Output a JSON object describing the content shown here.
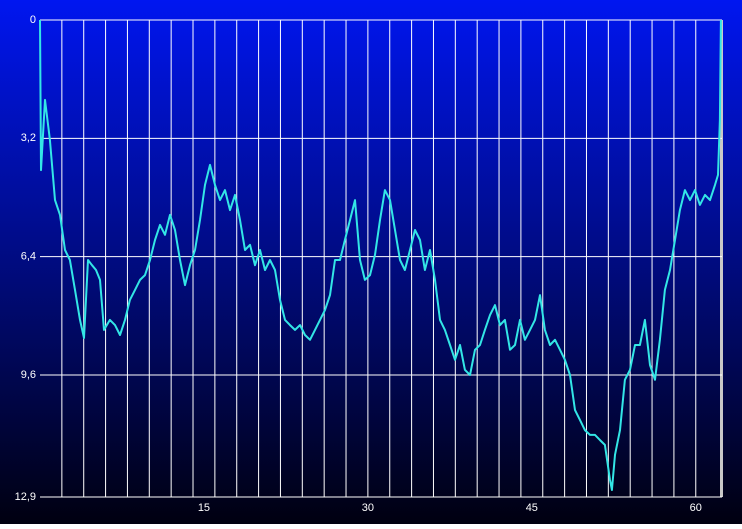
{
  "chart_data": {
    "type": "line",
    "color": "#33e6e6",
    "x": [
      0,
      0.09,
      0.46,
      0.91,
      1.37,
      1.83,
      2.29,
      2.74,
      3.2,
      3.66,
      4.03,
      4.39,
      4.76,
      5.12,
      5.49,
      5.86,
      6.4,
      6.86,
      7.32,
      7.78,
      8.23,
      8.69,
      9.15,
      9.61,
      10.06,
      10.52,
      10.98,
      11.44,
      11.89,
      12.35,
      12.81,
      13.27,
      13.72,
      14.18,
      14.64,
      15.1,
      15.55,
      16.01,
      16.47,
      16.93,
      17.38,
      17.84,
      18.3,
      18.76,
      19.21,
      19.67,
      20.13,
      20.59,
      21.04,
      21.5,
      21.96,
      22.42,
      22.87,
      23.33,
      23.79,
      24.25,
      24.7,
      25.16,
      25.62,
      26.08,
      26.53,
      26.99,
      27.45,
      27.9,
      28.36,
      28.82,
      29.28,
      29.73,
      30.19,
      30.65,
      31.11,
      31.56,
      32.02,
      32.48,
      32.94,
      33.39,
      33.85,
      34.31,
      34.77,
      35.22,
      35.68,
      36.14,
      36.6,
      37.05,
      37.51,
      37.97,
      38.43,
      38.88,
      39.34,
      39.8,
      40.26,
      40.71,
      41.17,
      41.63,
      42.09,
      42.54,
      43,
      43.46,
      43.92,
      44.37,
      44.83,
      45.29,
      45.75,
      46.2,
      46.66,
      47.12,
      47.58,
      48.03,
      48.49,
      48.95,
      49.41,
      49.86,
      50.32,
      50.78,
      51.24,
      51.69,
      52.15,
      52.33,
      52.61,
      53.07,
      53.52,
      53.98,
      54.44,
      54.89,
      55.35,
      55.81,
      56.27,
      56.72,
      57.18,
      57.64,
      58.1,
      58.55,
      59.01,
      59.47,
      59.93,
      60.38,
      60.84,
      61.3,
      61.76,
      62.03,
      62.21,
      62.3
    ],
    "values": [
      0,
      4.06,
      2.16,
      3.24,
      4.87,
      5.27,
      6.22,
      6.49,
      7.3,
      8.11,
      8.6,
      6.49,
      6.63,
      6.76,
      7.03,
      8.38,
      8.11,
      8.25,
      8.52,
      8.11,
      7.57,
      7.3,
      7.03,
      6.9,
      6.49,
      5.95,
      5.54,
      5.81,
      5.27,
      5.68,
      6.49,
      7.17,
      6.63,
      6.22,
      5.41,
      4.46,
      3.92,
      4.46,
      4.87,
      4.6,
      5.14,
      4.73,
      5.41,
      6.22,
      6.08,
      6.63,
      6.22,
      6.76,
      6.49,
      6.76,
      7.57,
      8.11,
      8.25,
      8.38,
      8.25,
      8.52,
      8.65,
      8.38,
      8.11,
      7.84,
      7.44,
      6.49,
      6.49,
      5.95,
      5.41,
      4.87,
      6.49,
      7.03,
      6.9,
      6.35,
      5.41,
      4.6,
      4.87,
      5.68,
      6.49,
      6.76,
      6.22,
      5.68,
      5.95,
      6.76,
      6.22,
      7.03,
      8.11,
      8.38,
      8.79,
      9.19,
      8.79,
      9.46,
      9.6,
      8.92,
      8.79,
      8.38,
      7.98,
      7.71,
      8.25,
      8.11,
      8.92,
      8.79,
      8.11,
      8.65,
      8.38,
      8.11,
      7.44,
      8.38,
      8.79,
      8.65,
      8.92,
      9.19,
      9.6,
      10.55,
      10.82,
      11.09,
      11.22,
      11.22,
      11.36,
      11.49,
      12.44,
      12.71,
      11.76,
      11.09,
      9.73,
      9.46,
      8.79,
      8.79,
      8.11,
      9.33,
      9.73,
      8.65,
      7.3,
      6.76,
      5.95,
      5.14,
      4.6,
      4.87,
      4.6,
      5,
      4.73,
      4.87,
      4.46,
      4.19,
      2.7,
      0
    ],
    "xlim": [
      0,
      62.4
    ],
    "xticks": [
      15,
      30,
      45,
      60
    ],
    "x_gridlines": [
      2,
      4,
      6,
      8,
      10,
      12,
      14,
      16,
      18,
      20,
      22,
      24,
      26,
      28,
      30,
      32,
      34,
      36,
      38,
      40,
      42,
      44,
      46,
      48,
      50,
      52,
      54,
      56,
      58,
      60
    ],
    "ylim": [
      0,
      12.9
    ],
    "y_inverted": true,
    "yticks": [
      0,
      {
        "value": 3.2,
        "label": "3,2"
      },
      {
        "value": 6.4,
        "label": "6,4"
      },
      {
        "value": 9.6,
        "label": "9,6"
      },
      {
        "value": 12.9,
        "label": "12,9"
      }
    ],
    "grid": true
  }
}
